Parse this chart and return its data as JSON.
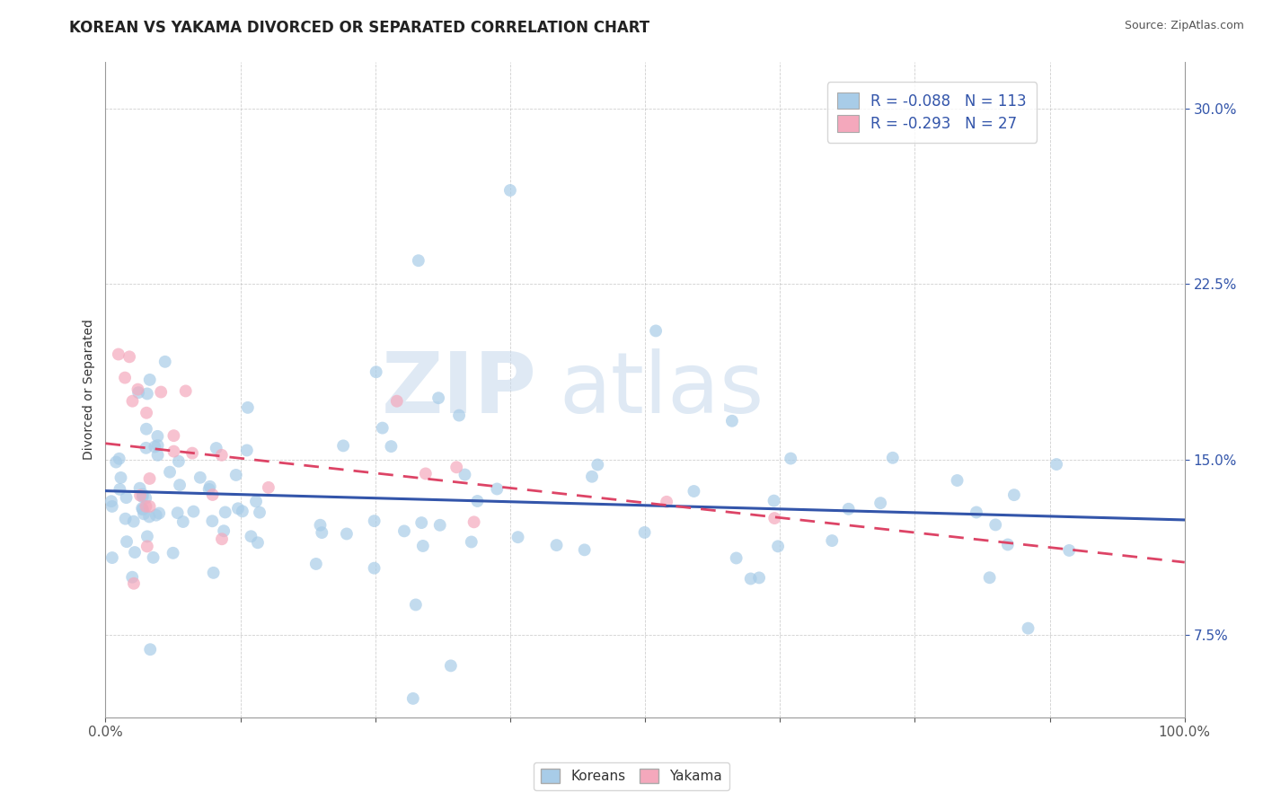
{
  "title": "KOREAN VS YAKAMA DIVORCED OR SEPARATED CORRELATION CHART",
  "source": "Source: ZipAtlas.com",
  "ylabel": "Divorced or Separated",
  "ytick_labels": [
    "7.5%",
    "15.0%",
    "22.5%",
    "30.0%"
  ],
  "ytick_values": [
    0.075,
    0.15,
    0.225,
    0.3
  ],
  "xlim": [
    0.0,
    1.0
  ],
  "ylim": [
    0.04,
    0.32
  ],
  "korean_R": -0.088,
  "korean_N": 113,
  "yakama_R": -0.293,
  "yakama_N": 27,
  "korean_color": "#A8CCE8",
  "yakama_color": "#F4A8BC",
  "korean_line_color": "#3355AA",
  "yakama_line_color": "#DD4466",
  "watermark_zip": "ZIP",
  "watermark_atlas": "atlas",
  "legend_label_korean": "Koreans",
  "legend_label_yakama": "Yakama",
  "background_color": "#ffffff",
  "grid_color": "#bbbbbb",
  "title_color": "#222222",
  "ytick_color": "#3355AA",
  "source_color": "#555555",
  "korean_line_intercept": 0.135,
  "korean_line_slope": -0.012,
  "yakama_line_intercept": 0.16,
  "yakama_line_slope": -0.09
}
